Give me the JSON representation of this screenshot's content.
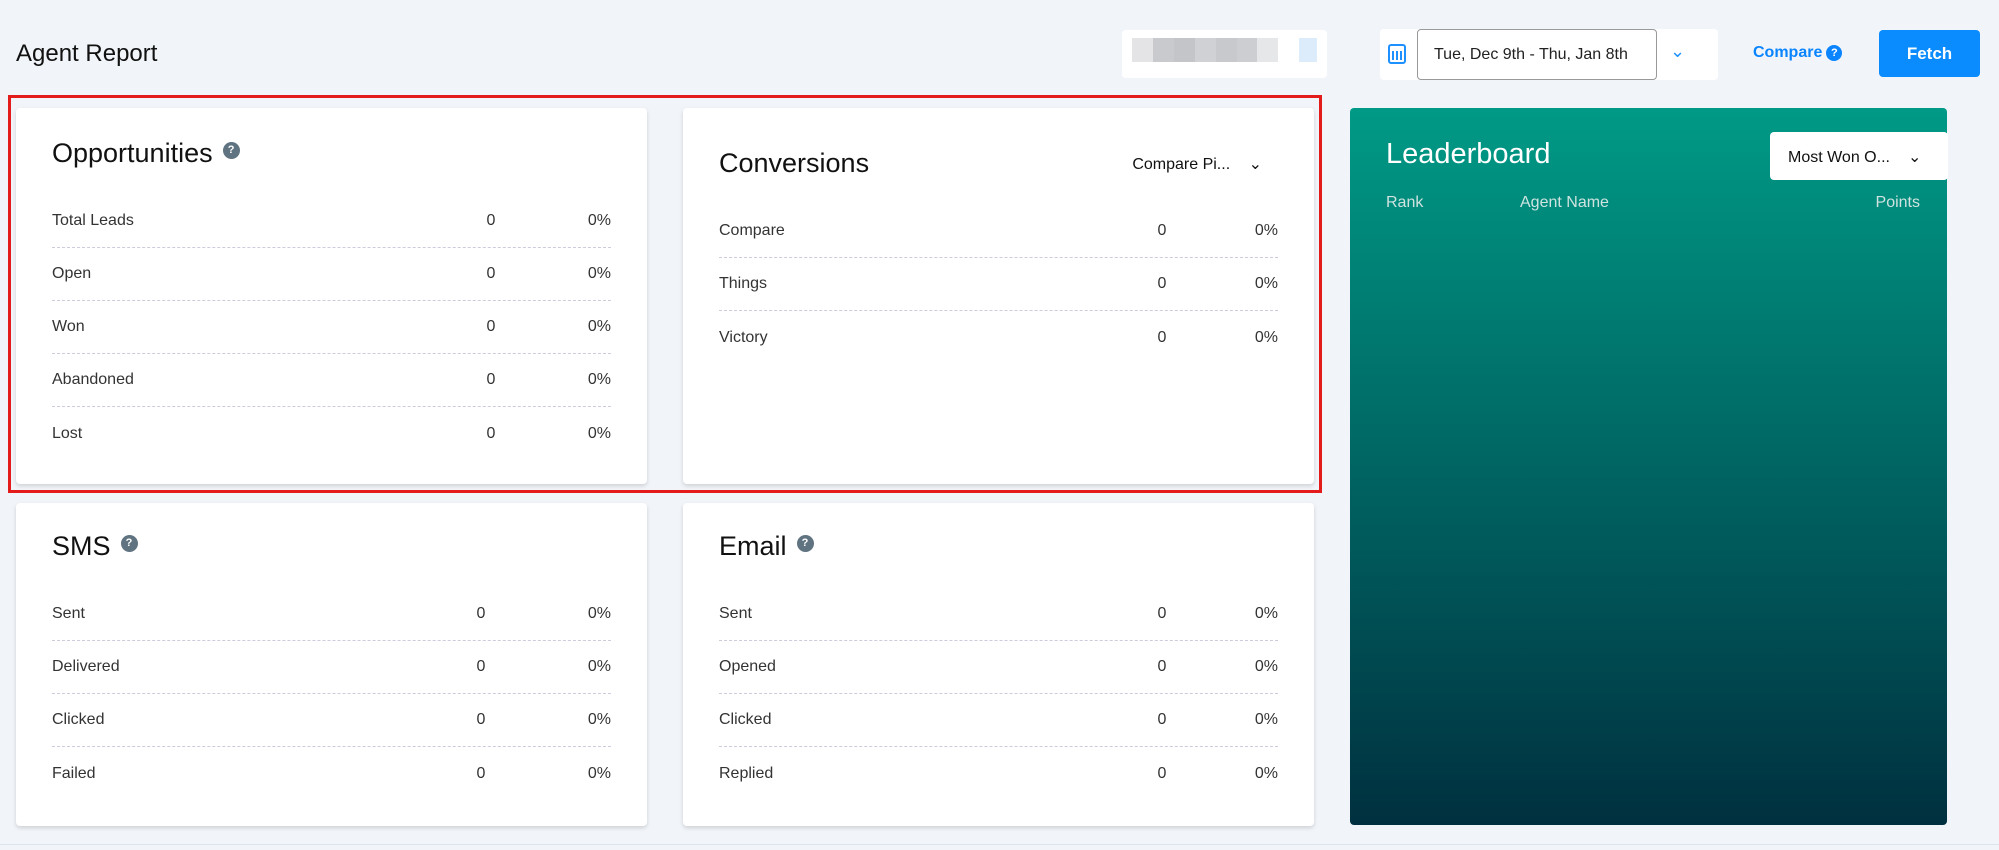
{
  "header": {
    "title": "Agent Report",
    "date_range": "Tue, Dec 9th - Thu, Jan 8th",
    "compare_label": "Compare",
    "fetch_label": "Fetch",
    "accent": "#0a8cff"
  },
  "opportunities": {
    "title": "Opportunities",
    "rows": [
      {
        "label": "Total Leads",
        "count": "0",
        "pct": "0%"
      },
      {
        "label": "Open",
        "count": "0",
        "pct": "0%"
      },
      {
        "label": "Won",
        "count": "0",
        "pct": "0%"
      },
      {
        "label": "Abandoned",
        "count": "0",
        "pct": "0%"
      },
      {
        "label": "Lost",
        "count": "0",
        "pct": "0%"
      }
    ]
  },
  "conversions": {
    "title": "Conversions",
    "select": "Compare Pi...",
    "rows": [
      {
        "label": "Compare",
        "count": "0",
        "pct": "0%"
      },
      {
        "label": "Things",
        "count": "0",
        "pct": "0%"
      },
      {
        "label": "Victory",
        "count": "0",
        "pct": "0%"
      }
    ]
  },
  "sms": {
    "title": "SMS",
    "rows": [
      {
        "label": "Sent",
        "count": "0",
        "pct": "0%"
      },
      {
        "label": "Delivered",
        "count": "0",
        "pct": "0%"
      },
      {
        "label": "Clicked",
        "count": "0",
        "pct": "0%"
      },
      {
        "label": "Failed",
        "count": "0",
        "pct": "0%"
      }
    ]
  },
  "email": {
    "title": "Email",
    "rows": [
      {
        "label": "Sent",
        "count": "0",
        "pct": "0%"
      },
      {
        "label": "Opened",
        "count": "0",
        "pct": "0%"
      },
      {
        "label": "Clicked",
        "count": "0",
        "pct": "0%"
      },
      {
        "label": "Replied",
        "count": "0",
        "pct": "0%"
      }
    ]
  },
  "leaderboard": {
    "title": "Leaderboard",
    "select": "Most Won O...",
    "columns": [
      "Rank",
      "Agent Name",
      "Points"
    ],
    "gradient": [
      "#009a86",
      "#00303f"
    ]
  }
}
